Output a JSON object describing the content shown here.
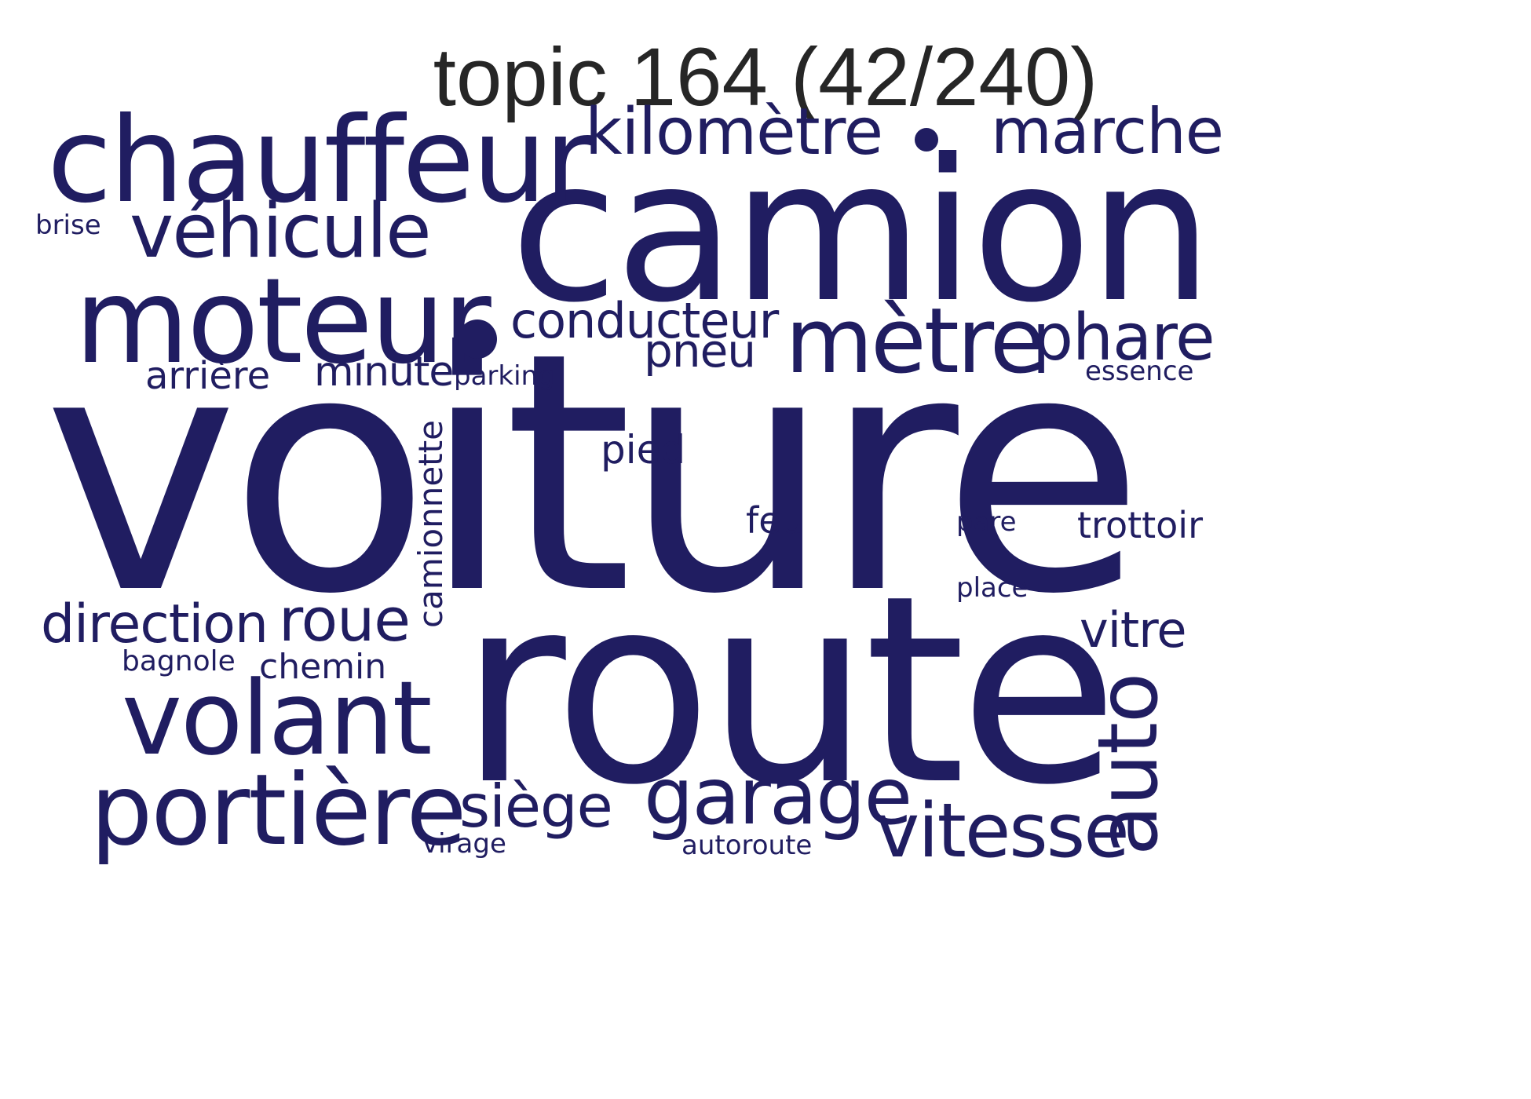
{
  "title": "topic 164 (42/240)",
  "text_color": "#201d61",
  "words": {
    "voiture": "voiture",
    "route": "route",
    "camion": "camion",
    "chauffeur": "chauffeur",
    "moteur": "moteur",
    "metre": "mètre",
    "volant": "volant",
    "portiere": "portière",
    "vehicule": "véhicule",
    "kilometre": "kilomètre",
    "marche": "marche",
    "garage": "garage",
    "vitesse": "vitesse",
    "auto": "auto",
    "phare": "phare",
    "conducteur": "conducteur",
    "direction": "direction",
    "roue": "roue",
    "siege": "siège",
    "vitre": "vitre",
    "pneu": "pneu",
    "minute": "minute",
    "arriere": "arrière",
    "camionnette": "camionnette",
    "pied": "pied",
    "trottoir": "trottoir",
    "chemin": "chemin",
    "feu": "feu",
    "parking": "parking",
    "essence": "essence",
    "bagnole": "bagnole",
    "place": "place",
    "pare": "pare",
    "virage": "virage",
    "autoroute": "autoroute",
    "brise": "brise"
  }
}
